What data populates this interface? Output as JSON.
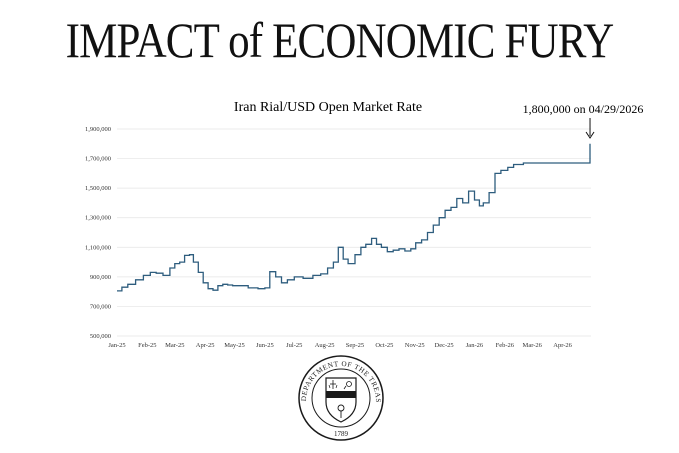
{
  "headline": "IMPACT of ECONOMIC FURY",
  "colors": {
    "line": "#2e5d7e",
    "grid": "#e4e4e4",
    "text": "#111111",
    "seal": "#1a1a1a"
  },
  "chart_data": {
    "type": "line",
    "title": "Iran Rial/USD Open Market Rate",
    "xlabel": "",
    "ylabel": "",
    "x_ticks": [
      "Jan-25",
      "Feb-25",
      "Mar-25",
      "Apr-25",
      "May-25",
      "Jun-25",
      "Jul-25",
      "Aug-25",
      "Sep-25",
      "Oct-25",
      "Nov-25",
      "Dec-25",
      "Jan-26",
      "Feb-26",
      "Mar-26",
      "Apr-26"
    ],
    "y_ticks": [
      "500,000",
      "700,000",
      "900,000",
      "1,100,000",
      "1,300,000",
      "1,500,000",
      "1,700,000",
      "1,900,000"
    ],
    "ylim": [
      500000,
      1900000
    ],
    "grid": true,
    "annotation": {
      "text": "1,800,000 on 04/29/2026",
      "x": "2026-04-29",
      "y": 1800000
    },
    "series": [
      {
        "x": [
          "2025-01-01",
          "2025-01-06",
          "2025-01-12",
          "2025-01-20",
          "2025-01-28",
          "2025-02-04",
          "2025-02-10",
          "2025-02-17",
          "2025-02-24",
          "2025-03-01",
          "2025-03-06",
          "2025-03-11",
          "2025-03-16",
          "2025-03-20",
          "2025-03-25",
          "2025-03-30",
          "2025-04-04",
          "2025-04-09",
          "2025-04-14",
          "2025-04-19",
          "2025-04-24",
          "2025-04-29",
          "2025-05-05",
          "2025-05-15",
          "2025-05-25",
          "2025-06-01",
          "2025-06-06",
          "2025-06-12",
          "2025-06-18",
          "2025-06-24",
          "2025-07-01",
          "2025-07-10",
          "2025-07-20",
          "2025-07-28",
          "2025-08-04",
          "2025-08-10",
          "2025-08-15",
          "2025-08-20",
          "2025-08-25",
          "2025-09-01",
          "2025-09-07",
          "2025-09-12",
          "2025-09-18",
          "2025-09-23",
          "2025-09-28",
          "2025-10-04",
          "2025-10-10",
          "2025-10-16",
          "2025-10-22",
          "2025-10-28",
          "2025-11-02",
          "2025-11-08",
          "2025-11-14",
          "2025-11-20",
          "2025-11-26",
          "2025-12-02",
          "2025-12-08",
          "2025-12-14",
          "2025-12-20",
          "2025-12-26",
          "2026-01-01",
          "2026-01-06",
          "2026-01-10",
          "2026-01-16",
          "2026-01-22",
          "2026-01-28",
          "2026-02-04",
          "2026-02-10",
          "2026-02-20",
          "2026-03-01",
          "2026-03-15",
          "2026-04-01",
          "2026-04-15",
          "2026-04-28",
          "2026-04-29"
        ],
        "values": [
          805000,
          830000,
          850000,
          880000,
          910000,
          930000,
          925000,
          910000,
          960000,
          990000,
          1000000,
          1045000,
          1050000,
          1000000,
          930000,
          860000,
          820000,
          810000,
          840000,
          850000,
          845000,
          840000,
          840000,
          825000,
          820000,
          825000,
          935000,
          900000,
          860000,
          880000,
          900000,
          890000,
          910000,
          920000,
          960000,
          1000000,
          1100000,
          1020000,
          990000,
          1050000,
          1100000,
          1120000,
          1160000,
          1120000,
          1100000,
          1070000,
          1080000,
          1090000,
          1075000,
          1090000,
          1130000,
          1150000,
          1200000,
          1250000,
          1300000,
          1350000,
          1370000,
          1430000,
          1400000,
          1480000,
          1420000,
          1380000,
          1400000,
          1470000,
          1600000,
          1620000,
          1640000,
          1660000,
          1670000,
          1670000,
          1670000,
          1670000,
          1670000,
          1670000,
          1800000
        ]
      }
    ]
  },
  "seal": {
    "ring_text": "THE DEPARTMENT OF THE TREASURY",
    "year": "1789"
  }
}
